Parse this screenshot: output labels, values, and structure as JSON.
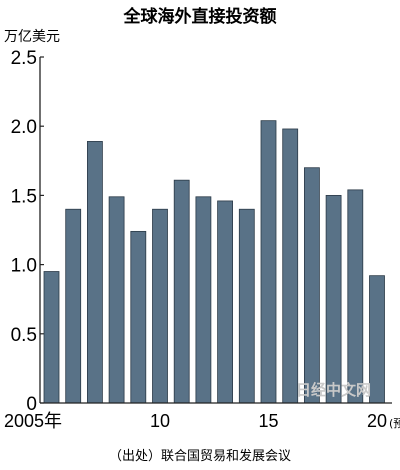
{
  "chart_data": {
    "type": "bar",
    "title": "全球海外直接投资额",
    "unit": "万亿美元",
    "categories": [
      "2005",
      "2006",
      "2007",
      "2008",
      "2009",
      "2010",
      "2011",
      "2012",
      "2013",
      "2014",
      "2015",
      "2016",
      "2017",
      "2018",
      "2019",
      "2020"
    ],
    "values": [
      0.95,
      1.4,
      1.89,
      1.49,
      1.24,
      1.4,
      1.61,
      1.49,
      1.46,
      1.4,
      2.04,
      1.98,
      1.7,
      1.5,
      1.54,
      0.92
    ],
    "ylim": [
      0,
      2.5
    ],
    "yticks": [
      "0",
      "0.5",
      "1.0",
      "1.5",
      "2.0",
      "2.5"
    ],
    "xtick_labels": [
      {
        "index": 0,
        "text": "2005年"
      },
      {
        "index": 5,
        "text": "10"
      },
      {
        "index": 10,
        "text": "15"
      },
      {
        "index": 15,
        "text": "20"
      }
    ],
    "forecast_note": "(预)",
    "source": "（出处）联合国贸易和发展会议",
    "watermark": "日经中文网",
    "bar_color": "#597287",
    "grid": false
  }
}
